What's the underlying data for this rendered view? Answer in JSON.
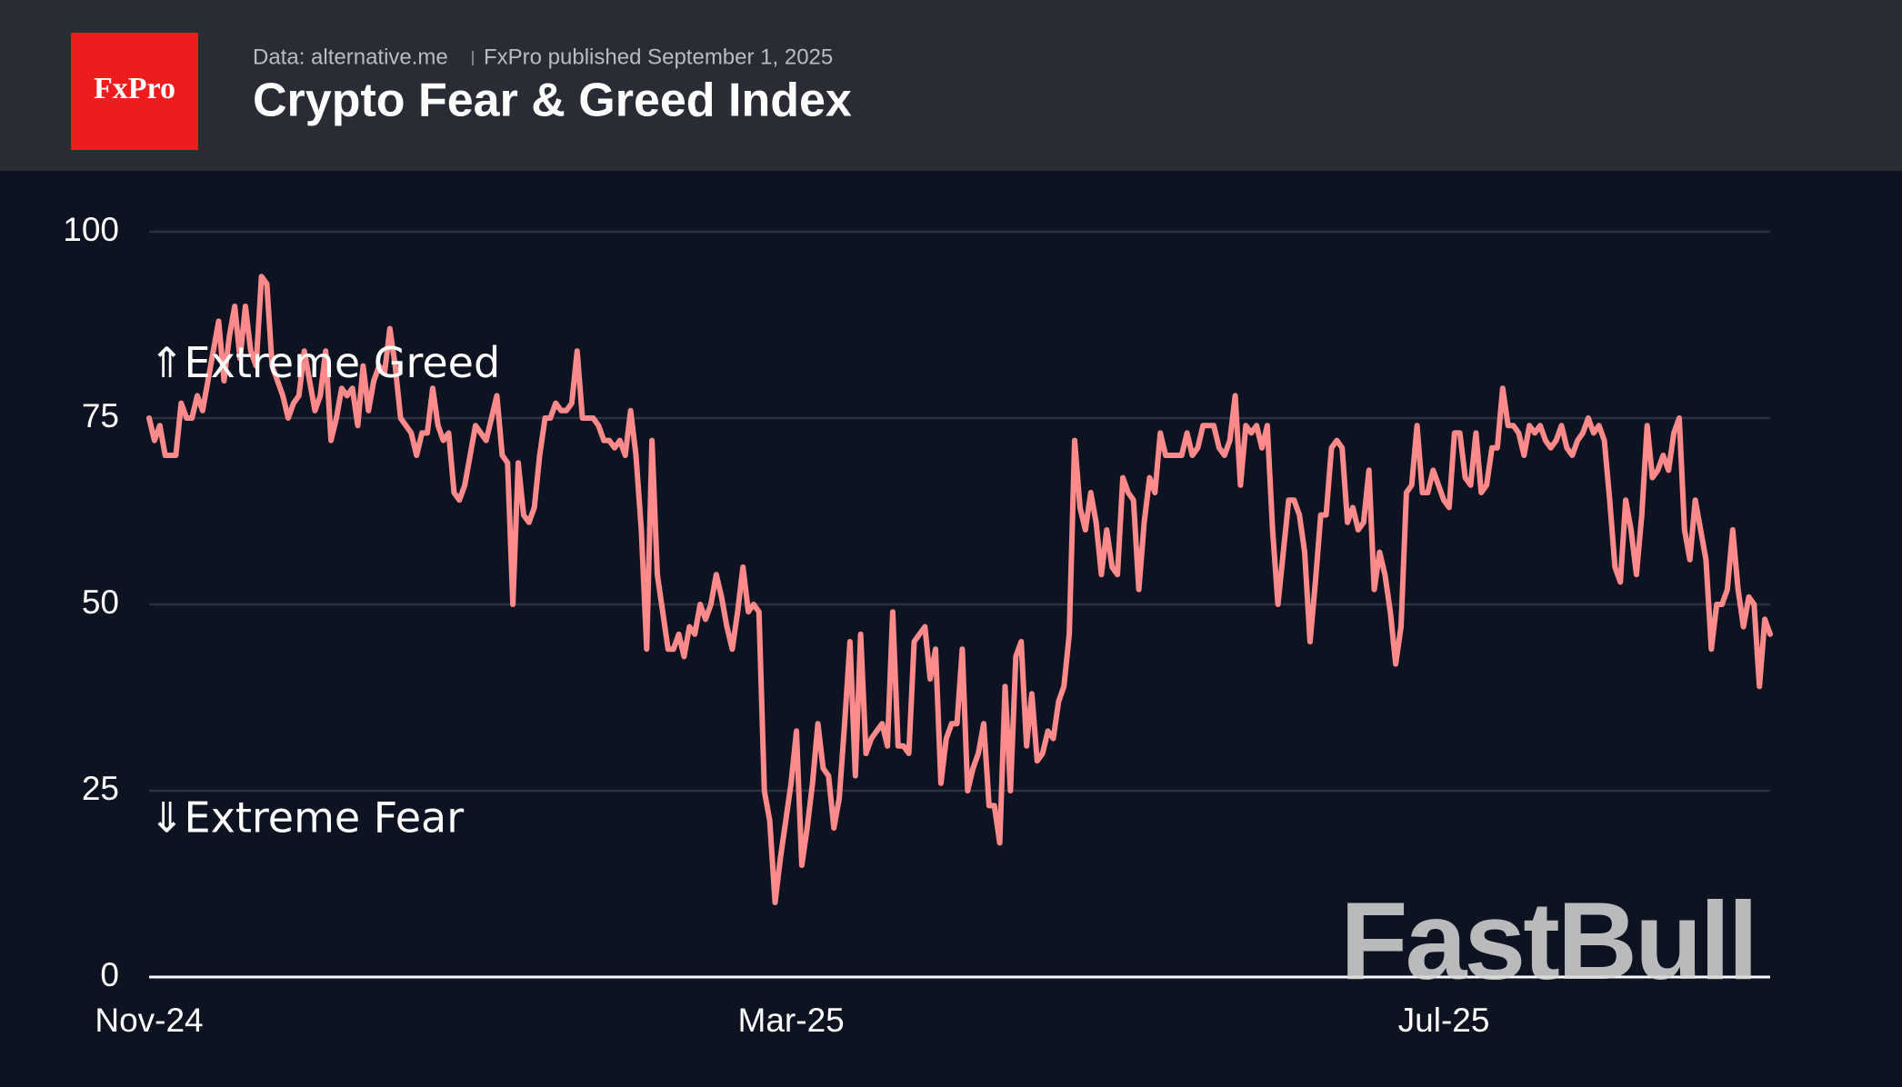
{
  "logo": "FxPro",
  "chart_data": {
    "type": "line",
    "title": "Crypto Fear & Greed Index",
    "source": "Data: alternative.me",
    "published": "FxPro published September 1, 2025",
    "watermark": "FastBull",
    "annotations": [
      "⇑Extreme Greed",
      "⇓Extreme Fear"
    ],
    "annotation_values": [
      82,
      21
    ],
    "grid": true,
    "xlim": [
      0,
      303
    ],
    "xticks": [
      {
        "value": 0,
        "label": "Nov-24"
      },
      {
        "value": 120,
        "label": "Mar-25"
      },
      {
        "value": 242,
        "label": "Jul-25"
      }
    ],
    "ylim": [
      0,
      100
    ],
    "yticks": [
      0,
      25,
      50,
      75,
      100
    ],
    "x": [
      0,
      1,
      2,
      3,
      4,
      5,
      6,
      7,
      8,
      9,
      10,
      11,
      12,
      13,
      14,
      15,
      16,
      17,
      18,
      19,
      20,
      21,
      22,
      23,
      24,
      25,
      26,
      27,
      28,
      29,
      30,
      31,
      32,
      33,
      34,
      35,
      36,
      37,
      38,
      39,
      40,
      41,
      42,
      43,
      44,
      45,
      46,
      47,
      48,
      49,
      50,
      51,
      52,
      53,
      54,
      55,
      56,
      57,
      58,
      59,
      60,
      61,
      62,
      63,
      64,
      65,
      66,
      67,
      68,
      69,
      70,
      71,
      72,
      73,
      74,
      75,
      76,
      77,
      78,
      79,
      80,
      81,
      82,
      83,
      84,
      85,
      86,
      87,
      88,
      89,
      90,
      91,
      92,
      93,
      94,
      95,
      96,
      97,
      98,
      99,
      100,
      101,
      102,
      103,
      104,
      105,
      106,
      107,
      108,
      109,
      110,
      111,
      112,
      113,
      114,
      115,
      116,
      117,
      118,
      119,
      120,
      121,
      122,
      123,
      124,
      125,
      126,
      127,
      128,
      129,
      130,
      131,
      132,
      133,
      134,
      135,
      136,
      137,
      138,
      139,
      140,
      141,
      142,
      143,
      144,
      145,
      146,
      147,
      148,
      149,
      150,
      151,
      152,
      153,
      154,
      155,
      156,
      157,
      158,
      159,
      160,
      161,
      162,
      163,
      164,
      165,
      166,
      167,
      168,
      169,
      170,
      171,
      172,
      173,
      174,
      175,
      176,
      177,
      178,
      179,
      180,
      181,
      182,
      183,
      184,
      185,
      186,
      187,
      188,
      189,
      190,
      191,
      192,
      193,
      194,
      195,
      196,
      197,
      198,
      199,
      200,
      201,
      202,
      203,
      204,
      205,
      206,
      207,
      208,
      209,
      210,
      211,
      212,
      213,
      214,
      215,
      216,
      217,
      218,
      219,
      220,
      221,
      222,
      223,
      224,
      225,
      226,
      227,
      228,
      229,
      230,
      231,
      232,
      233,
      234,
      235,
      236,
      237,
      238,
      239,
      240,
      241,
      242,
      243,
      244,
      245,
      246,
      247,
      248,
      249,
      250,
      251,
      252,
      253,
      254,
      255,
      256,
      257,
      258,
      259,
      260,
      261,
      262,
      263,
      264,
      265,
      266,
      267,
      268,
      269,
      270,
      271,
      272,
      273,
      274,
      275,
      276,
      277,
      278,
      279,
      280,
      281,
      282,
      283,
      284,
      285,
      286,
      287,
      288,
      289,
      290,
      291,
      292,
      293,
      294,
      295,
      296,
      297,
      298,
      299,
      300,
      301,
      302,
      303
    ],
    "series": [
      {
        "name": "Crypto Fear & Greed Index",
        "color": "#ff8a8c",
        "values": [
          75,
          72,
          74,
          70,
          70,
          70,
          77,
          75,
          75,
          78,
          76,
          80,
          84,
          88,
          80,
          86,
          90,
          83,
          90,
          84,
          82,
          94,
          93,
          82,
          80,
          78,
          75,
          77,
          78,
          84,
          80,
          76,
          78,
          84,
          72,
          75,
          79,
          78,
          79,
          74,
          82,
          76,
          80,
          82,
          81,
          87,
          82,
          75,
          74,
          73,
          70,
          73,
          73,
          79,
          74,
          72,
          73,
          65,
          64,
          66,
          70,
          74,
          73,
          72,
          75,
          78,
          70,
          69,
          50,
          69,
          62,
          61,
          63,
          70,
          75,
          75,
          77,
          76,
          76,
          77,
          84,
          75,
          75,
          75,
          74,
          72,
          72,
          71,
          72,
          70,
          76,
          70,
          60,
          44,
          72,
          54,
          49,
          44,
          44,
          46,
          43,
          47,
          46,
          50,
          48,
          50,
          54,
          51,
          47,
          44,
          49,
          55,
          49,
          50,
          49,
          25,
          21,
          10,
          16,
          21,
          26,
          33,
          15,
          20,
          26,
          34,
          28,
          27,
          20,
          24,
          34,
          45,
          27,
          46,
          30,
          32,
          33,
          34,
          31,
          49,
          31,
          31,
          30,
          45,
          46,
          47,
          40,
          44,
          26,
          32,
          34,
          34,
          44,
          25,
          28,
          30,
          34,
          23,
          23,
          18,
          39,
          25,
          43,
          45,
          31,
          38,
          29,
          30,
          33,
          32,
          37,
          39,
          46,
          72,
          63,
          60,
          65,
          61,
          54,
          60,
          55,
          54,
          67,
          65,
          64,
          52,
          61,
          67,
          65,
          73,
          70,
          70,
          70,
          70,
          73,
          70,
          71,
          74,
          74,
          74,
          71,
          70,
          72,
          78,
          66,
          74,
          73,
          74,
          71,
          74,
          60,
          50,
          57,
          64,
          64,
          62,
          57,
          45,
          53,
          62,
          62,
          71,
          72,
          71,
          61,
          63,
          60,
          61,
          68,
          52,
          57,
          54,
          49,
          42,
          47,
          65,
          66,
          74,
          65,
          65,
          68,
          66,
          64,
          63,
          73,
          73,
          67,
          66,
          73,
          65,
          66,
          71,
          71,
          79,
          74,
          74,
          73,
          70,
          74,
          73,
          74,
          72,
          71,
          72,
          74,
          71,
          70,
          72,
          73,
          75,
          73,
          74,
          72,
          64,
          55,
          53,
          64,
          60,
          54,
          62,
          74,
          67,
          68,
          70,
          68,
          73,
          75,
          60,
          56,
          64,
          60,
          56,
          44,
          50,
          50,
          52,
          60,
          52,
          47,
          51,
          50,
          39,
          48,
          46
        ]
      }
    ]
  }
}
